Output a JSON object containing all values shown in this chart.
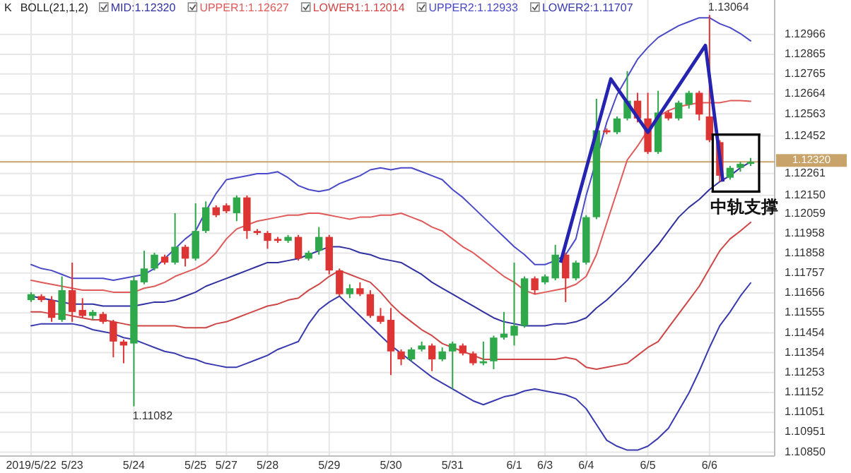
{
  "chart_data": {
    "type": "candlestick",
    "title": "K",
    "legend_title": "BOLL(21,1,2)",
    "categories": [
      "2019/5/22",
      null,
      null,
      null,
      "5/23",
      null,
      null,
      null,
      null,
      null,
      "5/24",
      null,
      null,
      null,
      null,
      null,
      "5/25",
      null,
      null,
      "5/27",
      null,
      null,
      null,
      "5/28",
      null,
      null,
      null,
      null,
      null,
      "5/29",
      null,
      null,
      null,
      null,
      null,
      "5/30",
      null,
      null,
      null,
      null,
      null,
      "5/31",
      null,
      null,
      null,
      null,
      null,
      "6/1",
      null,
      null,
      "6/3",
      null,
      null,
      null,
      "6/4",
      null,
      null,
      null,
      null,
      null,
      "6/5",
      null,
      null,
      null,
      null,
      null,
      "6/6",
      null,
      null,
      null,
      null
    ],
    "ohlc": [
      [
        1.1162,
        1.1166,
        1.1161,
        1.1165
      ],
      [
        1.1164,
        1.1165,
        1.1161,
        1.1162
      ],
      [
        1.1162,
        1.1164,
        1.1151,
        1.1153
      ],
      [
        1.1152,
        1.1174,
        1.1151,
        1.1167
      ],
      [
        1.1167,
        1.1181,
        1.1151,
        1.1156
      ],
      [
        1.1157,
        1.1163,
        1.1153,
        1.1154
      ],
      [
        1.1154,
        1.1157,
        1.1152,
        1.1156
      ],
      [
        1.1155,
        1.1156,
        1.115,
        1.1151
      ],
      [
        1.1151,
        1.1152,
        1.1133,
        1.1141
      ],
      [
        1.1141,
        1.1142,
        1.113,
        1.1139
      ],
      [
        1.114,
        1.1174,
        1.11082,
        1.1172
      ],
      [
        1.1171,
        1.1187,
        1.117,
        1.1178
      ],
      [
        1.1178,
        1.1186,
        1.1177,
        1.1185
      ],
      [
        1.1184,
        1.1185,
        1.118,
        1.1181
      ],
      [
        1.1181,
        1.1206,
        1.118,
        1.1189
      ],
      [
        1.1189,
        1.119,
        1.1179,
        1.1183
      ],
      [
        1.1183,
        1.1211,
        1.1182,
        1.1197
      ],
      [
        1.1197,
        1.1212,
        1.1196,
        1.1209
      ],
      [
        1.1209,
        1.121,
        1.1204,
        1.1205
      ],
      [
        1.121,
        1.1211,
        1.1206,
        1.1207
      ],
      [
        1.1206,
        1.1215,
        1.1202,
        1.1214
      ],
      [
        1.1214,
        1.1215,
        1.1193,
        1.1197
      ],
      [
        1.1197,
        1.1198,
        1.1195,
        1.1196
      ],
      [
        1.1196,
        1.1197,
        1.1188,
        1.1192
      ],
      [
        1.1193,
        1.1194,
        1.1191,
        1.1192
      ],
      [
        1.1192,
        1.1195,
        1.1191,
        1.1194
      ],
      [
        1.1194,
        1.1195,
        1.1182,
        1.1183
      ],
      [
        1.1183,
        1.1187,
        1.1182,
        1.1186
      ],
      [
        1.1187,
        1.1199,
        1.1185,
        1.1194
      ],
      [
        1.1194,
        1.1195,
        1.1175,
        1.1177
      ],
      [
        1.1177,
        1.1178,
        1.1164,
        1.1165
      ],
      [
        1.1165,
        1.117,
        1.1163,
        1.1168
      ],
      [
        1.1168,
        1.1171,
        1.1164,
        1.1165
      ],
      [
        1.1165,
        1.1167,
        1.1153,
        1.1154
      ],
      [
        1.1154,
        1.1158,
        1.115,
        1.1151
      ],
      [
        1.1152,
        1.1158,
        1.1124,
        1.1136
      ],
      [
        1.1136,
        1.1137,
        1.1129,
        1.1132
      ],
      [
        1.1132,
        1.1138,
        1.1131,
        1.1137
      ],
      [
        1.1137,
        1.1141,
        1.1136,
        1.1139
      ],
      [
        1.1139,
        1.114,
        1.1126,
        1.1132
      ],
      [
        1.1132,
        1.1138,
        1.1131,
        1.1136
      ],
      [
        1.1136,
        1.1141,
        1.1117,
        1.114
      ],
      [
        1.1139,
        1.114,
        1.1134,
        1.1135
      ],
      [
        1.1135,
        1.1136,
        1.1129,
        1.113
      ],
      [
        1.113,
        1.1141,
        1.1129,
        1.1131
      ],
      [
        1.1131,
        1.1144,
        1.1127,
        1.1143
      ],
      [
        1.1143,
        1.1156,
        1.1142,
        1.1145
      ],
      [
        1.1144,
        1.1181,
        1.1139,
        1.1149
      ],
      [
        1.1149,
        1.1174,
        1.1148,
        1.1173
      ],
      [
        1.1173,
        1.1174,
        1.1165,
        1.1167
      ],
      [
        1.1171,
        1.1175,
        1.117,
        1.1174
      ],
      [
        1.1173,
        1.119,
        1.1172,
        1.1185
      ],
      [
        1.1185,
        1.1186,
        1.1161,
        1.1173
      ],
      [
        1.1173,
        1.1182,
        1.1172,
        1.1181
      ],
      [
        1.1181,
        1.1205,
        1.118,
        1.1204
      ],
      [
        1.1204,
        1.1264,
        1.1203,
        1.1248
      ],
      [
        1.1248,
        1.1249,
        1.1246,
        1.1247
      ],
      [
        1.1247,
        1.1255,
        1.1246,
        1.1254
      ],
      [
        1.1254,
        1.1278,
        1.1253,
        1.1263
      ],
      [
        1.1263,
        1.1267,
        1.1252,
        1.1254
      ],
      [
        1.1254,
        1.1267,
        1.1236,
        1.1237
      ],
      [
        1.1237,
        1.1268,
        1.1236,
        1.1257
      ],
      [
        1.1257,
        1.1258,
        1.1253,
        1.1254
      ],
      [
        1.1254,
        1.1263,
        1.1253,
        1.1262
      ],
      [
        1.1261,
        1.1268,
        1.1259,
        1.1267
      ],
      [
        1.1267,
        1.1268,
        1.1253,
        1.1256
      ],
      [
        1.1255,
        1.13064,
        1.1242,
        1.1243
      ],
      [
        1.1242,
        1.1243,
        1.1222,
        1.1225
      ],
      [
        1.1224,
        1.123,
        1.1223,
        1.1229
      ],
      [
        1.1229,
        1.1232,
        1.1227,
        1.1231
      ],
      [
        1.1231,
        1.1234,
        1.123,
        1.1232
      ]
    ],
    "series": [
      {
        "type": "line",
        "name": "MID:1.12320",
        "color": "#3030a0",
        "values": [
          1.1164,
          1.1163,
          1.1162,
          1.1161,
          1.116,
          1.116,
          1.116,
          1.1159,
          1.1159,
          1.1159,
          1.1159,
          1.116,
          1.1161,
          1.1161,
          1.1162,
          1.1164,
          1.1166,
          1.1169,
          1.1171,
          1.1173,
          1.1175,
          1.1177,
          1.1179,
          1.1181,
          1.1181,
          1.1182,
          1.1183,
          1.1185,
          1.1187,
          1.1189,
          1.1189,
          1.1188,
          1.1186,
          1.1185,
          1.1183,
          1.1182,
          1.1181,
          1.1178,
          1.1175,
          1.1171,
          1.1168,
          1.1165,
          1.1162,
          1.1159,
          1.1156,
          1.1153,
          1.1151,
          1.115,
          1.1149,
          1.1149,
          1.1149,
          1.115,
          1.115,
          1.1151,
          1.1153,
          1.1158,
          1.1162,
          1.1167,
          1.1172,
          1.1178,
          1.1184,
          1.119,
          1.1197,
          1.1204,
          1.1209,
          1.1213,
          1.1218,
          1.1222,
          1.1225,
          1.1229,
          1.1232
        ]
      },
      {
        "type": "line",
        "name": "UPPER1:1.12627",
        "color": "#e05a5a",
        "values": [
          1.1172,
          1.1171,
          1.117,
          1.1169,
          1.1168,
          1.1167,
          1.1167,
          1.1167,
          1.1166,
          1.1166,
          1.1166,
          1.1168,
          1.1169,
          1.1171,
          1.1174,
          1.1176,
          1.1178,
          1.1181,
          1.1186,
          1.1193,
          1.1198,
          1.12,
          1.1202,
          1.1203,
          1.1204,
          1.1205,
          1.1205,
          1.1206,
          1.1206,
          1.1205,
          1.1204,
          1.1203,
          1.1204,
          1.1204,
          1.1205,
          1.1205,
          1.1206,
          1.1204,
          1.1202,
          1.1199,
          1.1197,
          1.1193,
          1.1189,
          1.1186,
          1.1182,
          1.1178,
          1.1174,
          1.1171,
          1.1167,
          1.1165,
          1.1166,
          1.1167,
          1.1168,
          1.117,
          1.1174,
          1.1185,
          1.1201,
          1.1217,
          1.1233,
          1.124,
          1.1248,
          1.1255,
          1.1258,
          1.126,
          1.1261,
          1.1262,
          1.1262,
          1.1262,
          1.1263,
          1.1263,
          1.12627
        ]
      },
      {
        "type": "line",
        "name": "LOWER1:1.12014",
        "color": "#cf4646",
        "values": [
          1.1156,
          1.1156,
          1.1155,
          1.1155,
          1.1154,
          1.1153,
          1.1152,
          1.1152,
          1.1151,
          1.115,
          1.1149,
          1.1149,
          1.1149,
          1.1149,
          1.1149,
          1.1148,
          1.1148,
          1.1148,
          1.115,
          1.1151,
          1.1153,
          1.1155,
          1.1157,
          1.1159,
          1.116,
          1.1162,
          1.1163,
          1.1167,
          1.117,
          1.1174,
          1.1177,
          1.1175,
          1.1173,
          1.1171,
          1.1166,
          1.116,
          1.1155,
          1.1151,
          1.1147,
          1.1144,
          1.114,
          1.1138,
          1.1136,
          1.1134,
          1.1132,
          1.1132,
          1.1132,
          1.1132,
          1.1132,
          1.1132,
          1.1132,
          1.1132,
          1.1133,
          1.1132,
          1.1128,
          1.1127,
          1.1128,
          1.1129,
          1.113,
          1.1134,
          1.1138,
          1.1141,
          1.1148,
          1.1155,
          1.1162,
          1.1169,
          1.1178,
          1.1187,
          1.1193,
          1.1197,
          1.12014
        ]
      },
      {
        "type": "line",
        "name": "UPPER2:1.12933",
        "color": "#4a4ac8",
        "values": [
          1.118,
          1.1178,
          1.1177,
          1.1175,
          1.1173,
          1.1173,
          1.1173,
          1.1173,
          1.1172,
          1.1173,
          1.1174,
          1.1175,
          1.1178,
          1.1183,
          1.1188,
          1.1193,
          1.1197,
          1.1207,
          1.1216,
          1.1223,
          1.1224,
          1.1225,
          1.1226,
          1.1226,
          1.1227,
          1.1224,
          1.122,
          1.1218,
          1.1217,
          1.1218,
          1.1221,
          1.1223,
          1.1225,
          1.1228,
          1.1229,
          1.1228,
          1.1229,
          1.1229,
          1.1227,
          1.1225,
          1.1223,
          1.1218,
          1.1214,
          1.1209,
          1.1204,
          1.1199,
          1.1194,
          1.1189,
          1.1185,
          1.118,
          1.118,
          1.1182,
          1.1185,
          1.1193,
          1.1215,
          1.1233,
          1.1252,
          1.1266,
          1.1275,
          1.1284,
          1.129,
          1.1295,
          1.1298,
          1.1301,
          1.1303,
          1.1305,
          1.1305,
          1.1302,
          1.13,
          1.1297,
          1.12933
        ]
      },
      {
        "type": "line",
        "name": "LOWER2:1.11707",
        "color": "#3a3ab0",
        "values": [
          1.1149,
          1.115,
          1.115,
          1.115,
          1.115,
          1.1149,
          1.1147,
          1.1146,
          1.1145,
          1.1143,
          1.1142,
          1.114,
          1.1138,
          1.1136,
          1.1135,
          1.1133,
          1.1132,
          1.113,
          1.1129,
          1.1128,
          1.1128,
          1.113,
          1.1132,
          1.1134,
          1.1137,
          1.1139,
          1.1141,
          1.115,
          1.1157,
          1.1161,
          1.1164,
          1.1159,
          1.1154,
          1.1149,
          1.1144,
          1.1139,
          1.1135,
          1.1131,
          1.1127,
          1.1123,
          1.112,
          1.1117,
          1.1114,
          1.1111,
          1.1109,
          1.1111,
          1.1113,
          1.1114,
          1.1116,
          1.1117,
          1.1116,
          1.1115,
          1.1114,
          1.1112,
          1.1107,
          1.1099,
          1.1091,
          1.1088,
          1.1086,
          1.1086,
          1.1088,
          1.1092,
          1.1097,
          1.1106,
          1.1115,
          1.1126,
          1.1138,
          1.1149,
          1.1156,
          1.1164,
          1.11707
        ]
      }
    ],
    "ylim": [
      1.1083,
      1.1314
    ],
    "yticks": [
      1.12966,
      1.12865,
      1.12765,
      1.12664,
      1.12563,
      1.12452,
      1.12261,
      {
        "value": 1.1215,
        "label": "1.12150"
      },
      1.12059,
      1.11958,
      1.11858,
      1.11757,
      1.11656,
      1.11555,
      1.11454,
      1.11354,
      1.11253,
      1.11152,
      1.11051,
      1.10951,
      {
        "value": 1.1085,
        "label": "1.10850"
      }
    ],
    "ref_lines": [
      {
        "axis": "y",
        "value": 1.1232,
        "label": "1.12320",
        "color": "#c9a46a"
      }
    ],
    "annotations": [
      {
        "text": "1.11082",
        "x": "5/24",
        "y": 1.11082
      },
      {
        "text": "1.13064",
        "x": "6/6",
        "y": 1.13064
      },
      {
        "text": "中轨支撑",
        "x": "6/6",
        "y": 1.1218
      }
    ],
    "grid": true,
    "legend": "top"
  }
}
